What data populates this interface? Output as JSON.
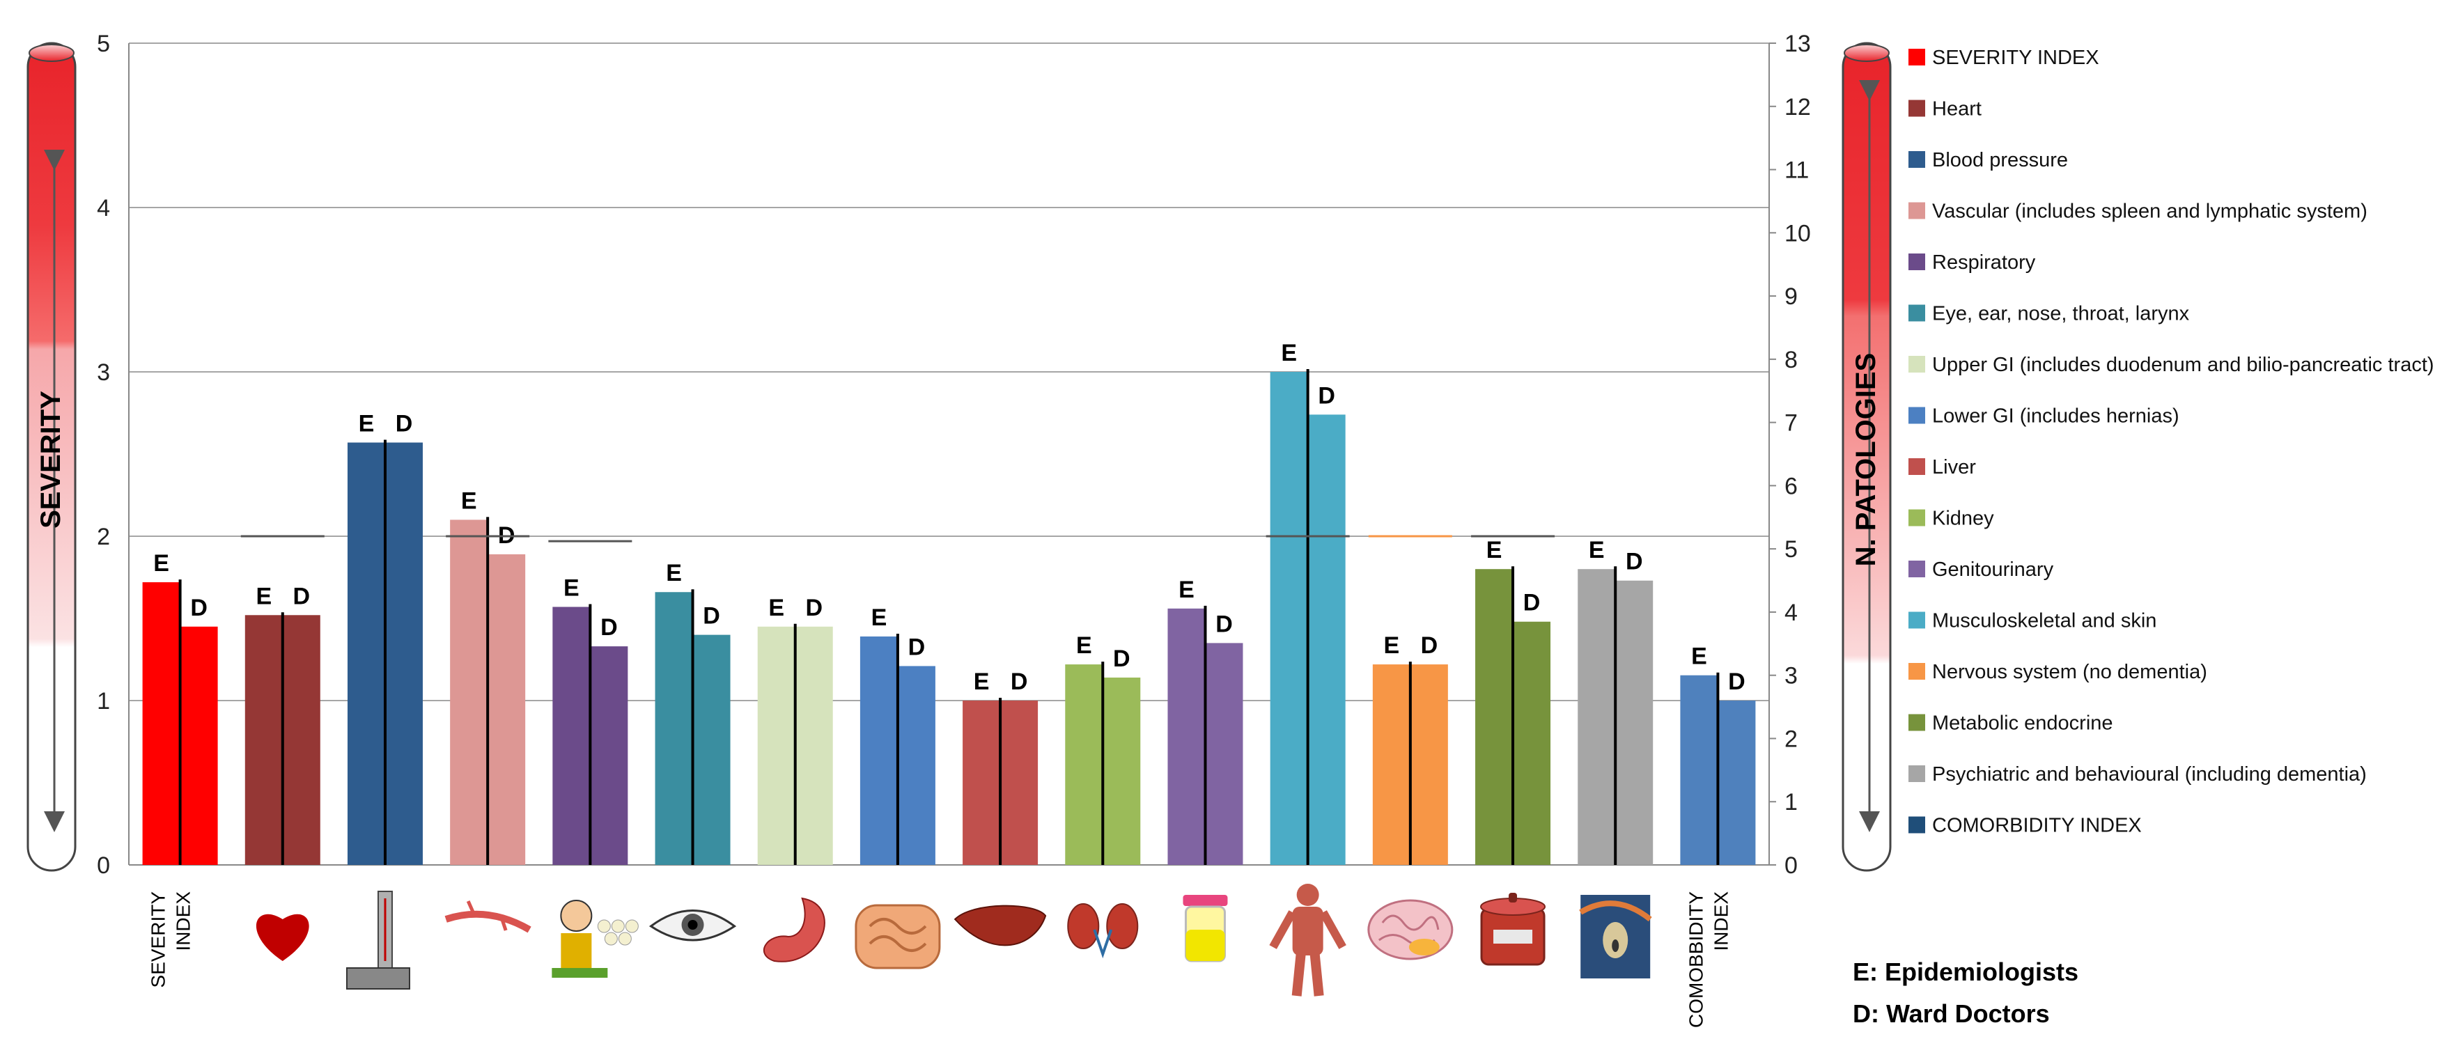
{
  "chart_data": {
    "type": "bar",
    "y_left": {
      "label": "SEVERITY",
      "range": [
        0,
        5
      ],
      "ticks": [
        "0",
        "1",
        "2",
        "3",
        "4",
        "5"
      ]
    },
    "y_right": {
      "label": "N. PATOLOGIES",
      "range": [
        0,
        13
      ],
      "ticks": [
        "0",
        "1",
        "2",
        "3",
        "4",
        "5",
        "6",
        "7",
        "8",
        "9",
        "10",
        "11",
        "12",
        "13"
      ]
    },
    "bar_letters": {
      "e": "E",
      "d": "D"
    },
    "series_names": [
      "E: Epidemiologists",
      "D: Ward Doctors"
    ],
    "categories": [
      {
        "name": "SEVERITY INDEX",
        "label_lines": [
          "SEVERITY",
          "INDEX"
        ],
        "color": "#ff0000",
        "e": 1.72,
        "d": 1.45,
        "axis": "left",
        "icon": ""
      },
      {
        "name": "Heart",
        "color": "#953735",
        "e": 1.52,
        "d": 1.52,
        "axis": "left",
        "icon": "heart-icon"
      },
      {
        "name": "Blood pressure",
        "color": "#2e5c8e",
        "e": 2.57,
        "d": 2.57,
        "axis": "left",
        "icon": "blood-pressure-monitor-icon"
      },
      {
        "name": "Vascular (includes spleen and lymphatic system)",
        "color": "#dd9794",
        "e": 2.1,
        "d": 1.89,
        "axis": "left",
        "icon": "blood-vessel-icon"
      },
      {
        "name": "Respiratory",
        "color": "#6b4b8a",
        "e": 1.57,
        "d": 1.33,
        "axis": "left",
        "icon": "coughing-person-icon"
      },
      {
        "name": "Eye, ear, nose, throat, larynx",
        "color": "#3a8ea0",
        "e": 1.66,
        "d": 1.4,
        "axis": "left",
        "icon": "eye-icon"
      },
      {
        "name": "Upper GI (includes duodenum and bilio-pancreatic tract)",
        "color": "#d6e3bc",
        "e": 1.45,
        "d": 1.45,
        "axis": "left",
        "icon": "stomach-icon"
      },
      {
        "name": "Lower GI (includes hernias)",
        "color": "#4c80c2",
        "e": 1.39,
        "d": 1.21,
        "axis": "left",
        "icon": "intestines-icon"
      },
      {
        "name": "Liver",
        "color": "#c0504d",
        "e": 1.0,
        "d": 1.0,
        "axis": "left",
        "icon": "liver-icon"
      },
      {
        "name": "Kidney",
        "color": "#9bbb59",
        "e": 1.22,
        "d": 1.14,
        "axis": "left",
        "icon": "kidneys-icon"
      },
      {
        "name": "Genitourinary",
        "color": "#8064a2",
        "e": 1.56,
        "d": 1.35,
        "axis": "left",
        "icon": "urine-sample-icon"
      },
      {
        "name": "Musculoskeletal and skin",
        "color": "#4bacc6",
        "e": 3.0,
        "d": 2.74,
        "axis": "left",
        "icon": "musculoskeletal-body-icon"
      },
      {
        "name": "Nervous system (no dementia)",
        "color": "#f79646",
        "e": 1.22,
        "d": 1.22,
        "axis": "left",
        "icon": "brain-icon"
      },
      {
        "name": "Metabolic endocrine",
        "color": "#77933c",
        "e": 1.8,
        "d": 1.48,
        "axis": "left",
        "icon": "sugar-jar-icon"
      },
      {
        "name": "Psychiatric and behavioural (including dementia)",
        "color": "#a6a6a6",
        "e": 1.8,
        "d": 1.73,
        "axis": "left",
        "icon": "scream-painting-icon"
      },
      {
        "name": "COMORBIDITY INDEX",
        "label_lines": [
          "COMOBBIDITY",
          "INDEX"
        ],
        "color": "#4f81bd",
        "e": 3.0,
        "d": 2.6,
        "axis": "right",
        "icon": ""
      }
    ],
    "reference_lines": [
      {
        "category_index": 1,
        "value": 2.0
      },
      {
        "category_index": 3,
        "value": 2.0
      },
      {
        "category_index": 4,
        "value": 1.97
      },
      {
        "category_index": 11,
        "value": 2.0
      },
      {
        "category_index": 12,
        "value": 2.0,
        "color": "#f79646"
      },
      {
        "category_index": 13,
        "value": 2.0
      }
    ],
    "legend": {
      "placement": "right",
      "entries": [
        {
          "label": "SEVERITY INDEX",
          "color": "#ff0000"
        },
        {
          "label": "Heart",
          "color": "#953735"
        },
        {
          "label": "Blood pressure",
          "color": "#2e5c8e"
        },
        {
          "label": "Vascular (includes spleen and lymphatic system)",
          "color": "#dd9794"
        },
        {
          "label": "Respiratory",
          "color": "#6b4b8a"
        },
        {
          "label": "Eye, ear, nose, throat, larynx",
          "color": "#3a8ea0"
        },
        {
          "label": "Upper GI (includes duodenum and bilio-pancreatic tract)",
          "color": "#d6e3bc"
        },
        {
          "label": "Lower GI (includes hernias)",
          "color": "#4c80c2"
        },
        {
          "label": "Liver",
          "color": "#c0504d"
        },
        {
          "label": "Kidney",
          "color": "#9bbb59"
        },
        {
          "label": "Genitourinary",
          "color": "#8064a2"
        },
        {
          "label": "Musculoskeletal and skin",
          "color": "#4bacc6"
        },
        {
          "label": "Nervous system (no dementia)",
          "color": "#f79646"
        },
        {
          "label": "Metabolic endocrine",
          "color": "#77933c"
        },
        {
          "label": "Psychiatric and behavioural (including dementia)",
          "color": "#a6a6a6"
        },
        {
          "label": "COMORBIDITY INDEX",
          "color": "#1f4e79"
        }
      ]
    },
    "grid": true
  }
}
